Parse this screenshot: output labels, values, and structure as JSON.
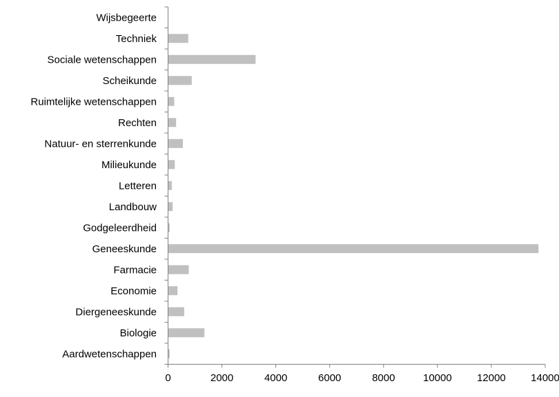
{
  "chart_data": {
    "type": "bar",
    "orientation": "horizontal",
    "categories": [
      "Wijsbegeerte",
      "Techniek",
      "Sociale wetenschappen",
      "Scheikunde",
      "Ruimtelijke wetenschappen",
      "Rechten",
      "Natuur- en sterrenkunde",
      "Milieukunde",
      "Letteren",
      "Landbouw",
      "Godgeleerdheid",
      "Geneeskunde",
      "Farmacie",
      "Economie",
      "Diergeneeskunde",
      "Biologie",
      "Aardwetenschappen"
    ],
    "values": [
      0,
      750,
      3250,
      880,
      230,
      300,
      550,
      250,
      140,
      170,
      60,
      13750,
      770,
      350,
      600,
      1350,
      60
    ],
    "xlim": [
      0,
      14000
    ],
    "xticks": [
      "0",
      "2000",
      "4000",
      "6000",
      "8000",
      "10000",
      "12000",
      "14000"
    ],
    "grid": false,
    "legend": "none",
    "bar_color": "#c0c0c0",
    "axis_color": "#808080"
  }
}
